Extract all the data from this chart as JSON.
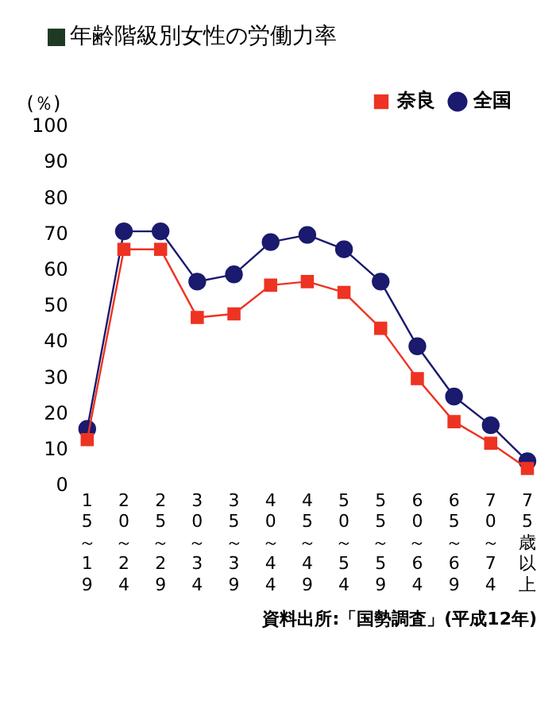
{
  "chart_data": {
    "type": "line",
    "title": "年齢階級別女性の労働力率",
    "ylabel": "(％)",
    "categories": [
      "15～19",
      "20～24",
      "25～29",
      "30～34",
      "35～39",
      "40～44",
      "45～49",
      "50～54",
      "55～59",
      "60～64",
      "65～69",
      "70～74",
      "75歳以上"
    ],
    "series": [
      {
        "name": "全国",
        "color": "#1a1a6e",
        "marker": "circle",
        "values": [
          16,
          71,
          71,
          57,
          59,
          68,
          70,
          66,
          57,
          39,
          25,
          17,
          7
        ]
      },
      {
        "name": "奈良",
        "color": "#ee3322",
        "marker": "square",
        "values": [
          13,
          66,
          66,
          47,
          48,
          56,
          57,
          54,
          44,
          30,
          18,
          12,
          5
        ]
      }
    ],
    "ylim": [
      0,
      100
    ],
    "yticks": [
      0,
      10,
      20,
      30,
      40,
      50,
      60,
      70,
      80,
      90,
      100
    ],
    "grid": false,
    "legend": "top right",
    "annotations": [
      "資料出所:「国勢調査」(平成12年)"
    ]
  }
}
